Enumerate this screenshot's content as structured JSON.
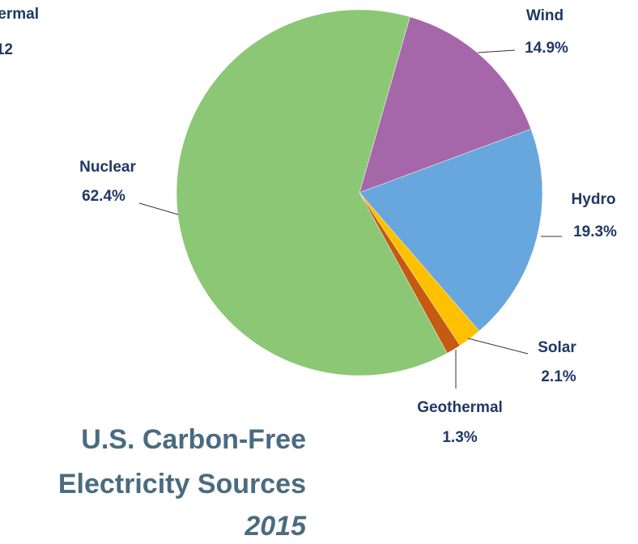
{
  "chart_data": {
    "type": "pie",
    "title": [
      "U.S. Carbon-Free",
      "Electricity Sources"
    ],
    "subtitle": "2015",
    "annotations": [
      "ermal",
      "12"
    ],
    "categories": [
      "Wind",
      "Hydro",
      "Solar",
      "Geothermal",
      "Nuclear"
    ],
    "values": [
      14.9,
      19.3,
      2.1,
      1.3,
      62.4
    ],
    "value_labels": [
      "14.9%",
      "19.3%",
      "2.1%",
      "1.3%",
      "62.4%"
    ],
    "colors": [
      "#a666aa",
      "#67a7dd",
      "#ffc000",
      "#c55a11",
      "#8bc775"
    ]
  }
}
